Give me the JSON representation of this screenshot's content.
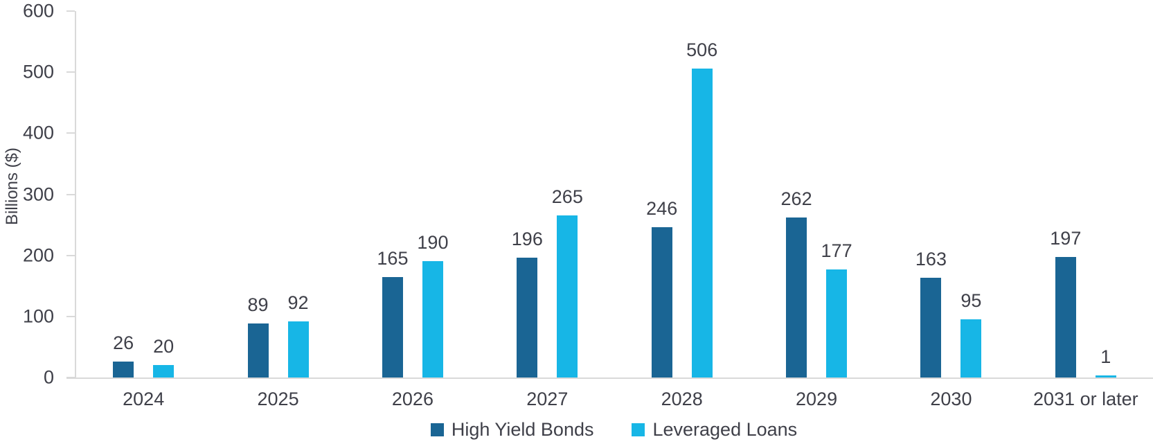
{
  "chart_data": {
    "type": "bar",
    "title": "",
    "xlabel": "",
    "ylabel": "Billions ($)",
    "ylim": [
      0,
      600
    ],
    "yticks": [
      0,
      100,
      200,
      300,
      400,
      500,
      600
    ],
    "grid": false,
    "legend_position": "bottom",
    "data_labels": true,
    "categories": [
      "2024",
      "2025",
      "2026",
      "2027",
      "2028",
      "2029",
      "2030",
      "2031 or later"
    ],
    "series": [
      {
        "name": "High Yield Bonds",
        "color": "#1A6594",
        "values": [
          26,
          89,
          165,
          196,
          246,
          262,
          163,
          197
        ]
      },
      {
        "name": "Leveraged Loans",
        "color": "#17B6E6",
        "values": [
          20,
          92,
          190,
          265,
          506,
          177,
          95,
          1
        ]
      }
    ],
    "colors": {
      "axis_line": "#d9d9d9",
      "text": "#3F4049",
      "high_yield_bonds": "#1A6594",
      "leveraged_loans": "#17B6E6"
    }
  }
}
